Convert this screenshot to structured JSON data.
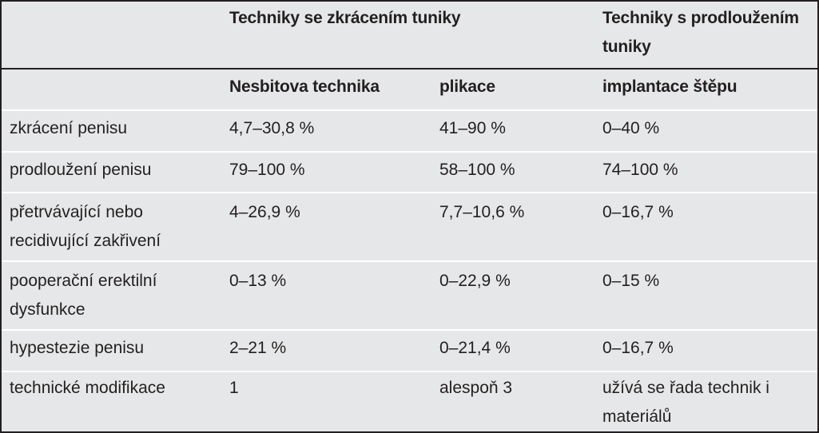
{
  "header": {
    "group_shortening": "Techniky se zkrácením tuniky",
    "group_lengthening": "Techniky s prodloužením tuniky",
    "col_nesbit": "Nesbitova technika",
    "col_plication": "plikace",
    "col_graft": "implantace štěpu"
  },
  "rows": [
    {
      "label": "zkrácení penisu",
      "nesbit": "4,7–30,8 %",
      "plication": "41–90 %",
      "graft": "0–40 %"
    },
    {
      "label": "prodloužení penisu",
      "nesbit": "79–100 %",
      "plication": "58–100 %",
      "graft": "74–100 %"
    },
    {
      "label": "přetrvávající nebo recidivující zakřivení",
      "nesbit": "4–26,9 %",
      "plication": "7,7–10,6 %",
      "graft": "0–16,7 %"
    },
    {
      "label": "pooperační erektilní dysfunkce",
      "nesbit": "0–13 %",
      "plication": "0–22,9 %",
      "graft": "0–15 %"
    },
    {
      "label": "hypestezie penisu",
      "nesbit": "2–21 %",
      "plication": "0–21,4 %",
      "graft": "0–16,7 %"
    },
    {
      "label": "technické modifikace",
      "nesbit": "1",
      "plication": "alespoň 3",
      "graft": "užívá se řada technik i materiálů"
    }
  ]
}
